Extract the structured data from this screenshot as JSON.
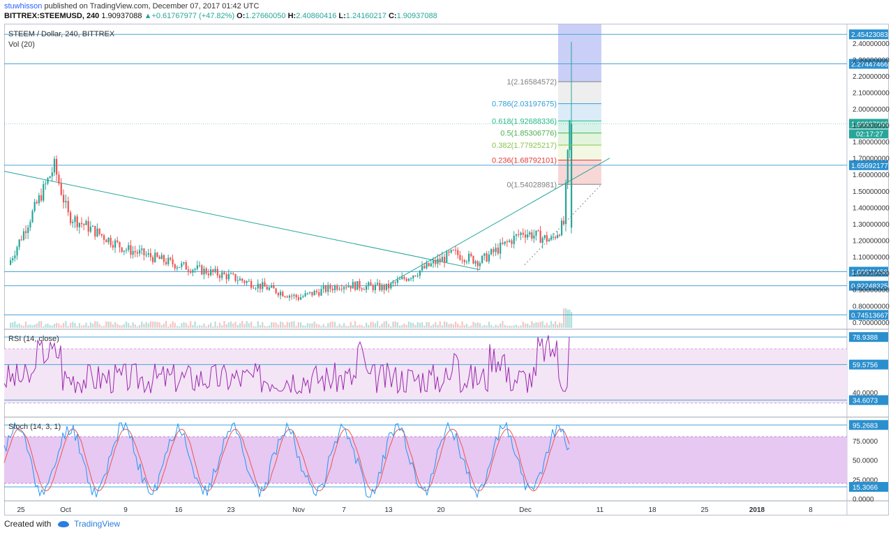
{
  "header": {
    "user": "stuwhisson",
    "published_text": " published on TradingView.com, December 07, 2017 01:42 UTC",
    "symbol": "BITTREX:STEEMUSD, 240",
    "last": "1.90937088",
    "change": "+0.61767977 (+47.82%)",
    "open_label": "O:",
    "open": "1.27660050",
    "high_label": "H:",
    "high": "2.40860416",
    "low_label": "L:",
    "low": "1.24160217",
    "close_label": "C:",
    "close": "1.90937088"
  },
  "price_pane": {
    "legend_title": "STEEM / Dollar, 240, BITTREX",
    "legend_vol": "Vol (20)",
    "axis_ticks": [
      "2.40000000",
      "2.30000000",
      "2.20000000",
      "2.10000000",
      "2.00000000",
      "1.90000000",
      "1.80000000",
      "1.70000000",
      "1.60000000",
      "1.50000000",
      "1.40000000",
      "1.30000000",
      "1.20000000",
      "1.10000000",
      "1.00000000",
      "0.90000000",
      "0.80000000",
      "0.70000000"
    ],
    "hlines": [
      "2.45423083",
      "2.27447466",
      "1.65692177",
      "1.00811458",
      "0.92248325",
      "0.74513667"
    ],
    "last_price_label": "1.90937088",
    "countdown": "02:17:27",
    "fib_levels": [
      {
        "ratio": "1",
        "label": "1(2.16584572)",
        "value": 2.16584572,
        "color": "#808080"
      },
      {
        "ratio": "0.786",
        "label": "0.786(2.03197675)",
        "value": 2.03197675,
        "color": "#2e9ed6"
      },
      {
        "ratio": "0.618",
        "label": "0.618(1.92688336)",
        "value": 1.92688336,
        "color": "#26b98a"
      },
      {
        "ratio": "0.5",
        "label": "0.5(1.85306776)",
        "value": 1.85306776,
        "color": "#4caf50"
      },
      {
        "ratio": "0.382",
        "label": "0.382(1.77925217)",
        "value": 1.77925217,
        "color": "#8bc34a"
      },
      {
        "ratio": "0.236",
        "label": "0.236(1.68792101)",
        "value": 1.68792101,
        "color": "#e53935"
      },
      {
        "ratio": "0",
        "label": "0(1.54028981)",
        "value": 1.54028981,
        "color": "#808080"
      }
    ]
  },
  "rsi_pane": {
    "title": "RSI (14, close)",
    "tick": "40.0000",
    "labels": [
      "78.9388",
      "59.5756",
      "34.6073"
    ]
  },
  "stoch_pane": {
    "title": "Stoch (14, 3, 1)",
    "ticks": [
      "75.0000",
      "50.0000",
      "25.0000",
      "0.0000"
    ],
    "labels": [
      "95.2683",
      "15.3066"
    ]
  },
  "time_axis": [
    "25",
    "Oct",
    "9",
    "16",
    "23",
    "Nov",
    "7",
    "13",
    "20",
    "Dec",
    "11",
    "18",
    "25",
    "2018",
    "8"
  ],
  "footer": {
    "created_with": "Created with",
    "brand": "TradingView"
  },
  "colors": {
    "up": "#26a69a",
    "down": "#ef5350",
    "hline": "#4aa3d6",
    "rsi_line": "#9c27b0",
    "stoch_k": "#2196f3",
    "stoch_d": "#ef5350",
    "band": "#e1bee7"
  },
  "chart_data": {
    "type": "candlestick",
    "symbol": "STEEMUSD",
    "interval": "240",
    "x": [
      "Sep 24",
      "Sep 28",
      "Oct 2",
      "Oct 9",
      "Oct 16",
      "Oct 23",
      "Nov 1",
      "Nov 7",
      "Nov 13",
      "Nov 20",
      "Nov 27",
      "Dec 1",
      "Dec 4",
      "Dec 6",
      "Dec 7"
    ],
    "close": [
      1.05,
      1.65,
      1.35,
      1.15,
      1.05,
      0.98,
      0.85,
      0.93,
      0.91,
      1.12,
      1.07,
      1.25,
      1.2,
      1.3,
      1.91
    ],
    "ylim": [
      0.65,
      2.5
    ],
    "trendlines": [
      {
        "from": [
          "Sep 24",
          1.62
        ],
        "to": [
          "Nov 24",
          1.02
        ]
      },
      {
        "from": [
          "Nov 13",
          0.94
        ],
        "to": [
          "Dec 11",
          1.7
        ]
      }
    ]
  }
}
